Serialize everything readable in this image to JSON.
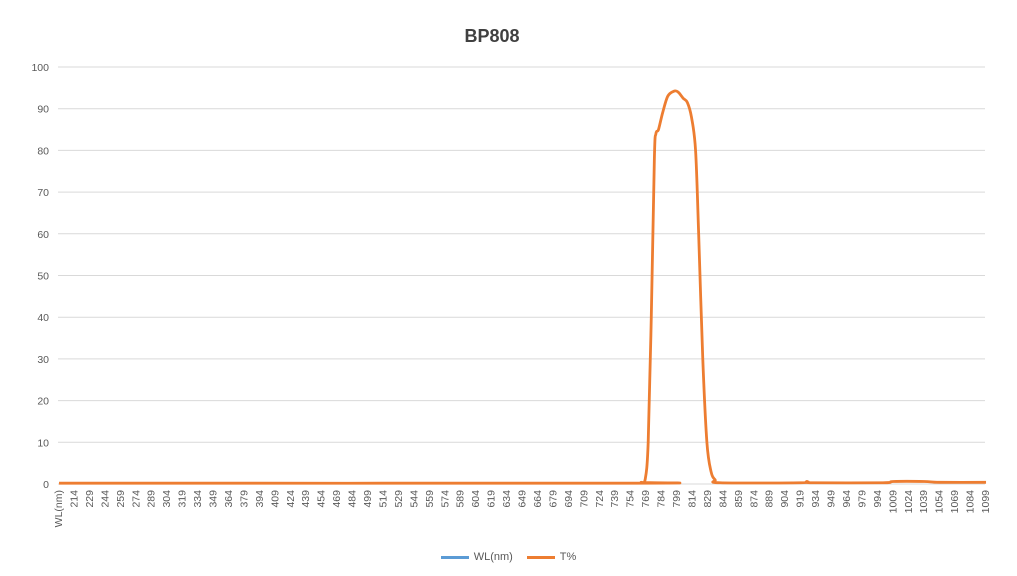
{
  "chart_data": {
    "type": "line",
    "title": "BP808",
    "xlabel": "",
    "ylabel": "",
    "ylim": [
      0,
      100
    ],
    "y_ticks": [
      0,
      10,
      20,
      30,
      40,
      50,
      60,
      70,
      80,
      90,
      100
    ],
    "x_range_nm": [
      200,
      1100
    ],
    "x_tick_labels": [
      "WL(nm)",
      "214",
      "229",
      "244",
      "259",
      "274",
      "289",
      "304",
      "319",
      "334",
      "349",
      "364",
      "379",
      "394",
      "409",
      "424",
      "439",
      "454",
      "469",
      "484",
      "499",
      "514",
      "529",
      "544",
      "559",
      "574",
      "589",
      "604",
      "619",
      "634",
      "649",
      "664",
      "679",
      "694",
      "709",
      "724",
      "739",
      "754",
      "769",
      "784",
      "799",
      "814",
      "829",
      "844",
      "859",
      "874",
      "889",
      "904",
      "919",
      "934",
      "949",
      "964",
      "979",
      "994",
      "1009",
      "1024",
      "1039",
      "1054",
      "1069",
      "1084",
      "1099"
    ],
    "grid": true,
    "legend_position": "bottom",
    "series": [
      {
        "name": "WL(nm)",
        "color": "#5B9BD5",
        "points": []
      },
      {
        "name": "T%",
        "color": "#ED7D31",
        "points": [
          [
            200,
            0.2
          ],
          [
            760,
            0.2
          ],
          [
            765,
            0.4
          ],
          [
            769,
            1
          ],
          [
            772,
            10
          ],
          [
            775,
            40
          ],
          [
            778,
            78
          ],
          [
            779.5,
            84
          ],
          [
            782,
            85
          ],
          [
            786,
            89
          ],
          [
            791,
            93
          ],
          [
            797,
            94.2
          ],
          [
            801,
            94
          ],
          [
            806,
            92.5
          ],
          [
            810,
            91.5
          ],
          [
            814,
            88
          ],
          [
            818,
            80
          ],
          [
            821,
            60
          ],
          [
            825,
            30
          ],
          [
            829,
            10
          ],
          [
            833,
            3
          ],
          [
            837,
            1
          ],
          [
            842,
            0.3
          ],
          [
            920,
            0.3
          ],
          [
            926,
            0.6
          ],
          [
            932,
            0.3
          ],
          [
            1000,
            0.3
          ],
          [
            1010,
            0.6
          ],
          [
            1040,
            0.6
          ],
          [
            1055,
            0.4
          ],
          [
            1100,
            0.4
          ]
        ]
      }
    ]
  }
}
